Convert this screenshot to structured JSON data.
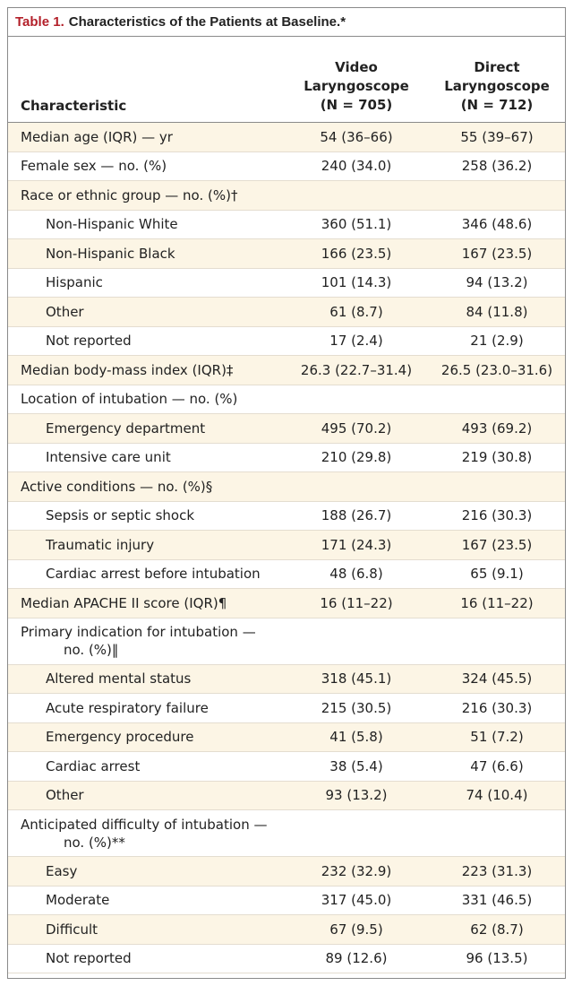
{
  "header": {
    "label": "Table 1.",
    "title": "Characteristics of the Patients at Baseline.*"
  },
  "table": {
    "columns": [
      {
        "lines": [
          "Characteristic"
        ]
      },
      {
        "lines": [
          "Video",
          "Laryngoscope",
          "(N = 705)"
        ]
      },
      {
        "lines": [
          "Direct",
          "Laryngoscope",
          "(N = 712)"
        ]
      }
    ],
    "rows": [
      {
        "label": "Median age (IQR) — yr",
        "video": "54 (36–66)",
        "direct": "55 (39–67)"
      },
      {
        "label": "Female sex — no. (%)",
        "video": "240 (34.0)",
        "direct": "258 (36.2)"
      },
      {
        "label": "Race or ethnic group — no. (%)†"
      },
      {
        "label": "Non-Hispanic White",
        "indent": true,
        "video": "360 (51.1)",
        "direct": "346 (48.6)"
      },
      {
        "label": "Non-Hispanic Black",
        "indent": true,
        "video": "166 (23.5)",
        "direct": "167 (23.5)"
      },
      {
        "label": "Hispanic",
        "indent": true,
        "video": "101 (14.3)",
        "direct": "94 (13.2)"
      },
      {
        "label": "Other",
        "indent": true,
        "video": "61 (8.7)",
        "direct": "84 (11.8)"
      },
      {
        "label": "Not reported",
        "indent": true,
        "video": "17 (2.4)",
        "direct": "21 (2.9)"
      },
      {
        "label": "Median body-mass index (IQR)‡",
        "video": "26.3 (22.7–31.4)",
        "direct": "26.5 (23.0–31.6)"
      },
      {
        "label": "Location of intubation — no. (%)"
      },
      {
        "label": "Emergency department",
        "indent": true,
        "video": "495 (70.2)",
        "direct": "493 (69.2)"
      },
      {
        "label": "Intensive care unit",
        "indent": true,
        "video": "210 (29.8)",
        "direct": "219 (30.8)"
      },
      {
        "label": "Active conditions — no. (%)§"
      },
      {
        "label": "Sepsis or septic shock",
        "indent": true,
        "video": "188 (26.7)",
        "direct": "216 (30.3)"
      },
      {
        "label": "Traumatic injury",
        "indent": true,
        "video": "171 (24.3)",
        "direct": "167 (23.5)"
      },
      {
        "label": "Cardiac arrest before intubation",
        "indent": true,
        "video": "48 (6.8)",
        "direct": "65 (9.1)"
      },
      {
        "label": "Median APACHE II score (IQR)¶",
        "video": "16 (11–22)",
        "direct": "16 (11–22)"
      },
      {
        "label_lines": [
          "Primary indication for intubation —",
          "no. (%)‖"
        ]
      },
      {
        "label": "Altered mental status",
        "indent": true,
        "video": "318 (45.1)",
        "direct": "324 (45.5)"
      },
      {
        "label": "Acute respiratory failure",
        "indent": true,
        "video": "215 (30.5)",
        "direct": "216 (30.3)"
      },
      {
        "label": "Emergency procedure",
        "indent": true,
        "video": "41 (5.8)",
        "direct": "51 (7.2)"
      },
      {
        "label": "Cardiac arrest",
        "indent": true,
        "video": "38 (5.4)",
        "direct": "47 (6.6)"
      },
      {
        "label": "Other",
        "indent": true,
        "video": "93 (13.2)",
        "direct": "74 (10.4)"
      },
      {
        "label_lines": [
          "Anticipated difficulty of intubation —",
          "no. (%)**"
        ]
      },
      {
        "label": "Easy",
        "indent": true,
        "video": "232 (32.9)",
        "direct": "223 (31.3)"
      },
      {
        "label": "Moderate",
        "indent": true,
        "video": "317 (45.0)",
        "direct": "331 (46.5)"
      },
      {
        "label": "Difficult",
        "indent": true,
        "video": "67 (9.5)",
        "direct": "62 (8.7)"
      },
      {
        "label": "Not reported",
        "indent": true,
        "video": "89 (12.6)",
        "direct": "96 (13.5)"
      }
    ]
  }
}
